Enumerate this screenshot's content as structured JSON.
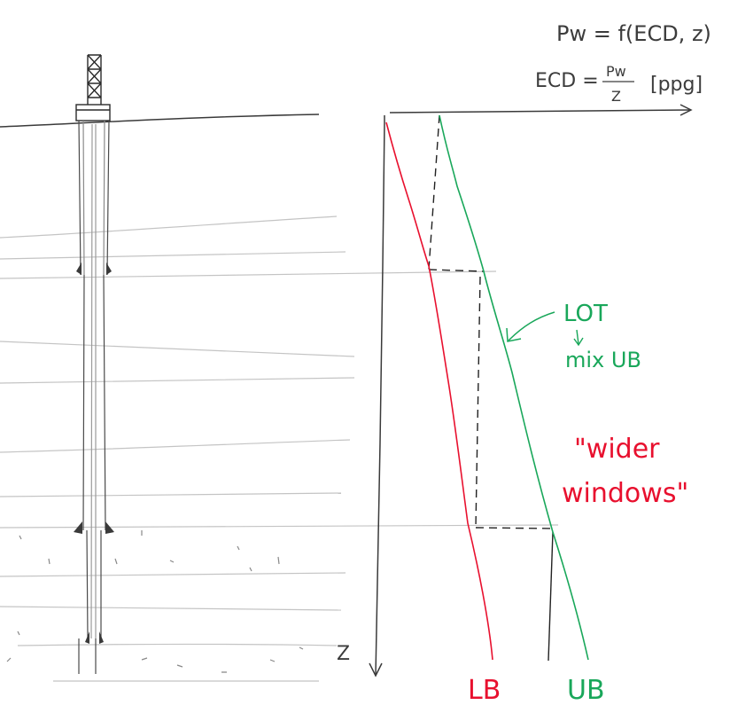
{
  "equations": {
    "line1": "Pw = f(ECD, z)",
    "line2_left": "ECD =",
    "fraction_num": "Pw",
    "fraction_den": "Z",
    "line2_unit": "[ppg]"
  },
  "axis": {
    "depth_label": "Z"
  },
  "annotations": {
    "lot": "LOT",
    "mix_ub": "mix UB",
    "wider": "\"wider",
    "windows": "windows\""
  },
  "curves": {
    "lower_bound": {
      "label": "LB",
      "color": "#e8102e"
    },
    "upper_bound": {
      "label": "UB",
      "color": "#19a75a"
    }
  },
  "colors": {
    "pencil": "#3c3c3c",
    "faint_pencil": "#bdbdbd"
  }
}
